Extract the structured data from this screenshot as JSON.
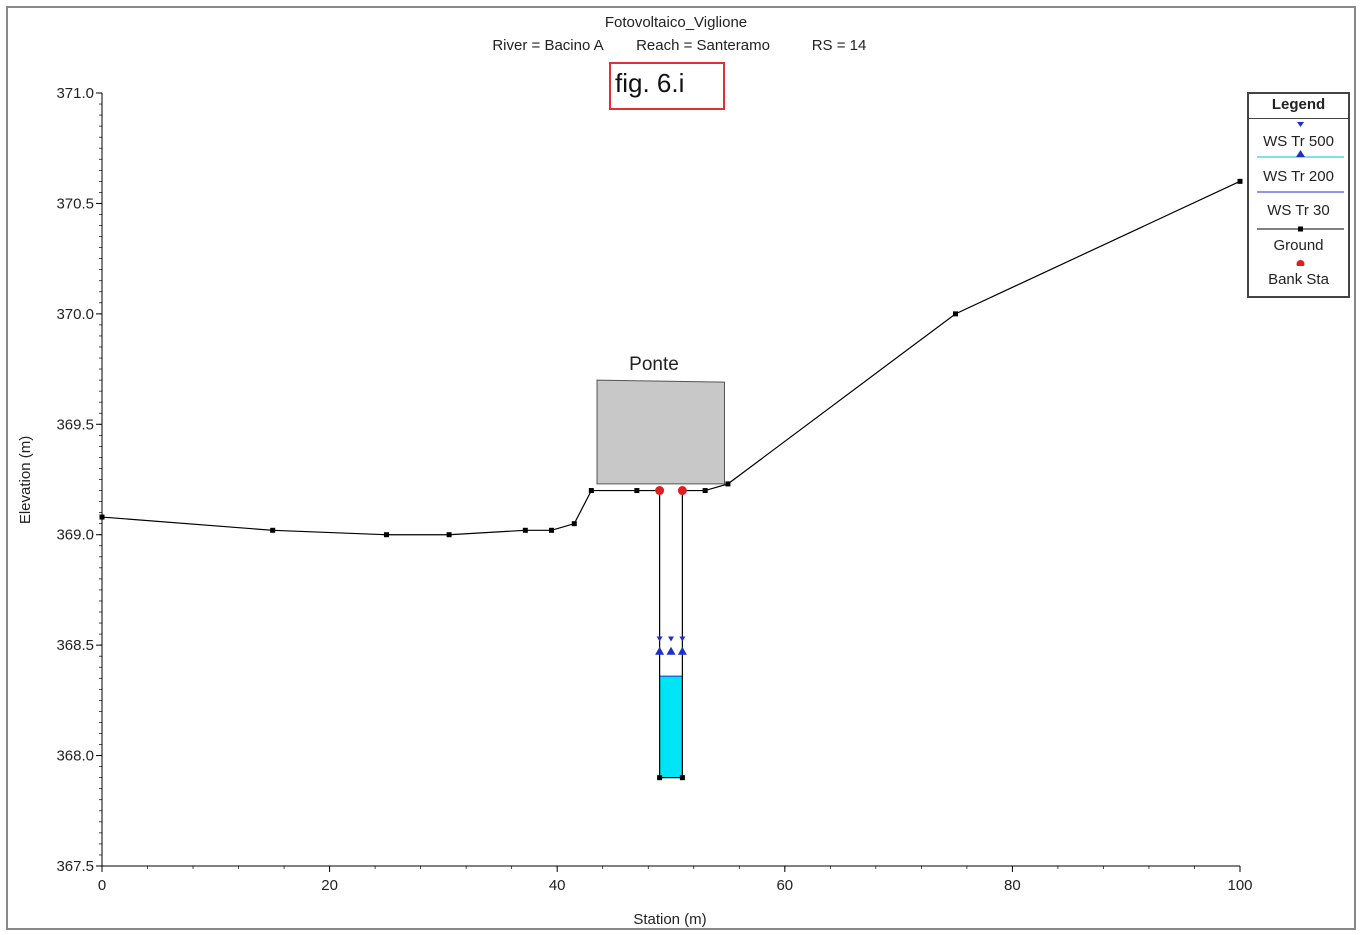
{
  "chart_data": {
    "type": "line",
    "title": "Fotovoltaico_Viglione",
    "subtitle_parts": [
      "River = Bacino A",
      "Reach = Santeramo",
      "RS = 14"
    ],
    "annotation_box": "fig. 6.i",
    "structure_label": "Ponte",
    "xlabel": "Station (m)",
    "ylabel": "Elevation (m)",
    "xlim": [
      0,
      100
    ],
    "ylim": [
      367.5,
      371.0
    ],
    "x_ticks": [
      0,
      20,
      40,
      60,
      80,
      100
    ],
    "x_tick_labels": [
      "0",
      "20",
      "40",
      "60",
      "80",
      "100"
    ],
    "y_ticks": [
      367.5,
      368.0,
      368.5,
      369.0,
      369.5,
      370.0,
      370.5,
      371.0
    ],
    "y_tick_labels": [
      "367.5",
      "368.0",
      "368.5",
      "369.0",
      "369.5",
      "370.0",
      "370.5",
      "371.0"
    ],
    "grid": false,
    "legend_position": "top-right",
    "legend_title": "Legend",
    "series": [
      {
        "name": "Ground",
        "color": "#000000",
        "x": [
          0,
          15,
          25,
          30.5,
          37.2,
          39.5,
          41.5,
          43,
          47,
          49,
          49,
          51,
          51,
          53,
          55,
          75,
          100
        ],
        "y": [
          369.08,
          369.02,
          369.0,
          369.0,
          369.02,
          369.02,
          369.05,
          369.2,
          369.2,
          369.2,
          367.9,
          367.9,
          369.2,
          369.2,
          369.23,
          370.0,
          370.6
        ]
      },
      {
        "name": "Bank Sta",
        "color": "#e02020",
        "x": [
          49,
          51
        ],
        "y": [
          369.2,
          369.2
        ]
      },
      {
        "name": "WS Tr 500",
        "color": "#1a2fd0",
        "x": [
          49,
          51
        ],
        "y": [
          368.53,
          368.53
        ]
      },
      {
        "name": "WS Tr 200",
        "color": "#1a2fd0",
        "x": [
          49,
          51
        ],
        "y": [
          368.47,
          368.47
        ]
      },
      {
        "name": "WS Tr 30",
        "color": "#00d8ee",
        "x": [
          49,
          51
        ],
        "y": [
          368.36,
          368.36
        ]
      }
    ],
    "bridge_deck": {
      "x": [
        43.5,
        54.7
      ],
      "y_low": 369.23,
      "y_high": 369.7,
      "color": "#c8c8c8"
    },
    "legend_items": [
      "WS Tr 500",
      "WS Tr 200",
      "WS Tr 30",
      "Ground",
      "Bank Sta"
    ]
  }
}
